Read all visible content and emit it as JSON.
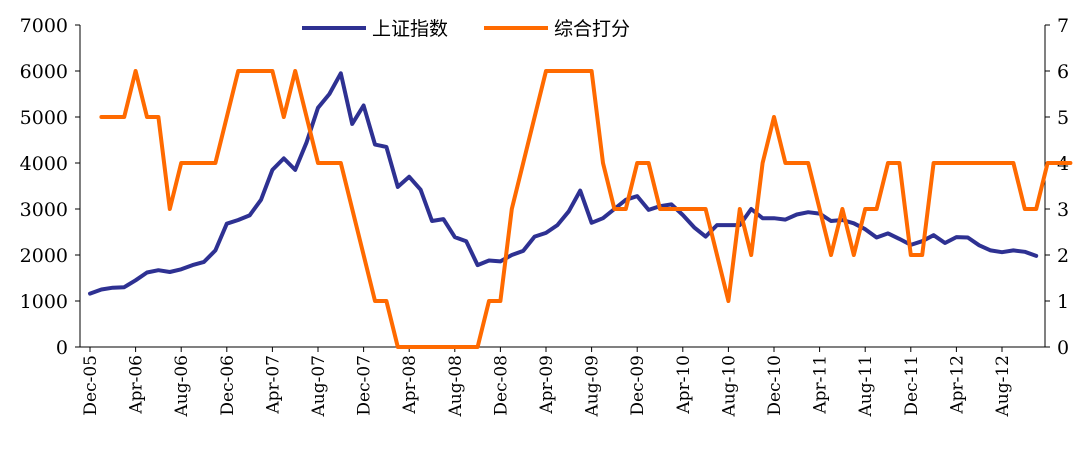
{
  "chart_data": {
    "type": "line",
    "legend_position": "top-center",
    "grid": false,
    "x_tick_labels": [
      "Dec-05",
      "Apr-06",
      "Aug-06",
      "Dec-06",
      "Apr-07",
      "Aug-07",
      "Dec-07",
      "Apr-08",
      "Aug-08",
      "Dec-08",
      "Apr-09",
      "Aug-09",
      "Dec-09",
      "Apr-10",
      "Aug-10",
      "Dec-10",
      "Apr-11",
      "Aug-11",
      "Dec-11",
      "Apr-12",
      "Aug-12"
    ],
    "y_left": {
      "min": 0,
      "max": 7000,
      "ticks": [
        "0",
        "1000",
        "2000",
        "3000",
        "4000",
        "5000",
        "6000",
        "7000"
      ]
    },
    "y_right": {
      "min": 0,
      "max": 7,
      "ticks": [
        "0",
        "1",
        "2",
        "3",
        "4",
        "5",
        "6",
        "7"
      ]
    },
    "series": [
      {
        "name": "上证指数",
        "axis": "left",
        "color": "#2e3192",
        "start": "Dec-05",
        "values": [
          1160,
          1250,
          1290,
          1300,
          1450,
          1620,
          1670,
          1630,
          1690,
          1780,
          1850,
          2100,
          2680,
          2760,
          2860,
          3200,
          3850,
          4100,
          3850,
          4450,
          5200,
          5500,
          5950,
          4850,
          5250,
          4400,
          4350,
          3480,
          3700,
          3420,
          2740,
          2780,
          2390,
          2300,
          1780,
          1880,
          1860,
          2000,
          2090,
          2400,
          2480,
          2650,
          2950,
          3400,
          2700,
          2800,
          3000,
          3200,
          3280,
          2980,
          3060,
          3100,
          2870,
          2600,
          2400,
          2650,
          2650,
          2650,
          3000,
          2800,
          2800,
          2770,
          2880,
          2930,
          2900,
          2740,
          2760,
          2690,
          2560,
          2380,
          2470,
          2350,
          2220,
          2300,
          2430,
          2260,
          2390,
          2380,
          2210,
          2100,
          2060,
          2100,
          2070,
          1980
        ]
      },
      {
        "name": "综合打分",
        "axis": "right",
        "color": "#ff6a00",
        "start": "Jan-06",
        "values": [
          5,
          5,
          5,
          6,
          5,
          5,
          3,
          4,
          4,
          4,
          4,
          5,
          6,
          6,
          6,
          6,
          5,
          6,
          5,
          4,
          4,
          4,
          3,
          2,
          1,
          1,
          0,
          0,
          0,
          0,
          0,
          0,
          0,
          0,
          1,
          1,
          3,
          4,
          5,
          6,
          6,
          6,
          6,
          6,
          4,
          3,
          3,
          4,
          4,
          3,
          3,
          3,
          3,
          3,
          2,
          1,
          3,
          2,
          4,
          5,
          4,
          4,
          4,
          3,
          2,
          3,
          2,
          3,
          3,
          4,
          4,
          2,
          2,
          4,
          4,
          4,
          4,
          4,
          4,
          4,
          4,
          3,
          3,
          4,
          4,
          4
        ]
      }
    ]
  }
}
